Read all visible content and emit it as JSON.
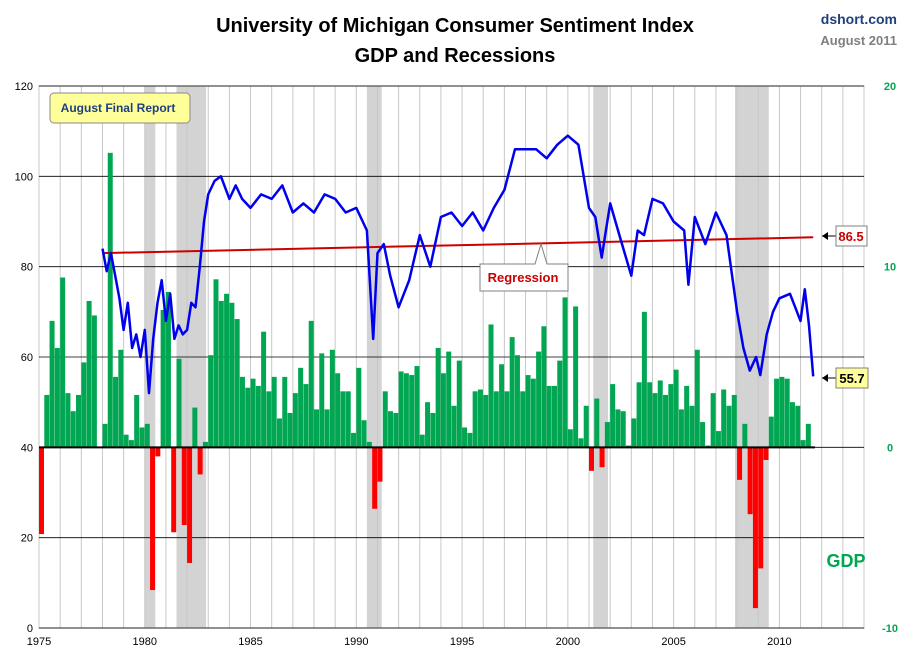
{
  "chart_data": {
    "type": "line",
    "title": "University of Michigan Consumer Sentiment Index",
    "subtitle": "GDP and Recessions",
    "source": "dshort.com",
    "date": "August 2011",
    "badge": "August Final Report",
    "regression_label": "Regression",
    "regression": {
      "start": [
        1978.0,
        83.0
      ],
      "end": [
        2011.6,
        86.5
      ],
      "label": "86.5"
    },
    "latest_label": "55.7",
    "gdp_label": "GDP",
    "colors": {
      "sentiment": "#0000ee",
      "regression": "#cc0000",
      "gdp_positive": "#00a651",
      "gdp_negative": "#ff0000",
      "recession": "#d3d3d3",
      "badge_fill": "#ffff99"
    },
    "left_axis": {
      "min": 0,
      "max": 120,
      "ticks": [
        "0",
        "20",
        "40",
        "60",
        "80",
        "100",
        "120"
      ]
    },
    "right_axis": {
      "min": -10,
      "max": 20,
      "ticks": [
        "-10",
        "0",
        "10",
        "20"
      ]
    },
    "x_axis": {
      "min": 1975,
      "max": 2014,
      "ticks": [
        "1975",
        "1980",
        "1985",
        "1990",
        "1995",
        "2000",
        "2005",
        "2010"
      ]
    },
    "recessions": [
      [
        1980.0,
        1980.5
      ],
      [
        1981.5,
        1982.9
      ],
      [
        1990.5,
        1991.2
      ],
      [
        2001.2,
        2001.9
      ],
      [
        2007.9,
        2009.5
      ]
    ],
    "sentiment": {
      "x": [
        1978.0,
        1978.2,
        1978.4,
        1978.6,
        1978.8,
        1979.0,
        1979.2,
        1979.4,
        1979.6,
        1979.8,
        1980.0,
        1980.2,
        1980.4,
        1980.6,
        1980.8,
        1981.0,
        1981.2,
        1981.4,
        1981.6,
        1981.8,
        1982.0,
        1982.2,
        1982.4,
        1982.6,
        1982.8,
        1983.0,
        1983.3,
        1983.6,
        1984.0,
        1984.3,
        1984.6,
        1985.0,
        1985.5,
        1986.0,
        1986.5,
        1987.0,
        1987.5,
        1988.0,
        1988.5,
        1989.0,
        1989.5,
        1990.0,
        1990.5,
        1990.8,
        1991.0,
        1991.3,
        1991.6,
        1992.0,
        1992.5,
        1993.0,
        1993.5,
        1994.0,
        1994.5,
        1995.0,
        1995.5,
        1996.0,
        1996.5,
        1997.0,
        1997.5,
        1998.0,
        1998.5,
        1999.0,
        1999.5,
        2000.0,
        2000.5,
        2001.0,
        2001.3,
        2001.6,
        2001.8,
        2002.0,
        2002.5,
        2003.0,
        2003.3,
        2003.6,
        2004.0,
        2004.5,
        2005.0,
        2005.5,
        2005.7,
        2006.0,
        2006.5,
        2007.0,
        2007.5,
        2008.0,
        2008.3,
        2008.6,
        2008.9,
        2009.1,
        2009.4,
        2009.7,
        2010.0,
        2010.5,
        2011.0,
        2011.2,
        2011.4,
        2011.6
      ],
      "values": [
        84,
        79,
        83,
        78,
        73,
        66,
        72,
        62,
        65,
        60,
        66,
        52,
        64,
        72,
        77,
        68,
        74,
        64,
        67,
        65,
        66,
        72,
        71,
        80,
        90,
        96,
        99,
        100,
        95,
        98,
        95,
        93,
        96,
        95,
        98,
        92,
        94,
        92,
        96,
        95,
        92,
        93,
        88,
        64,
        83,
        85,
        78,
        71,
        77,
        87,
        80,
        91,
        92,
        89,
        92,
        88,
        93,
        97,
        106,
        106,
        106,
        104,
        107,
        109,
        107,
        93,
        91,
        82,
        88,
        94,
        86,
        78,
        88,
        87,
        95,
        94,
        90,
        88,
        76,
        91,
        85,
        92,
        87,
        70,
        62,
        57,
        60,
        56,
        65,
        70,
        73,
        74,
        68,
        75,
        67,
        55.7
      ]
    },
    "gdp": {
      "x": [
        1975.0,
        1975.25,
        1975.5,
        1975.75,
        1976.0,
        1976.25,
        1976.5,
        1976.75,
        1977.0,
        1977.25,
        1977.5,
        1977.75,
        1978.0,
        1978.25,
        1978.5,
        1978.75,
        1979.0,
        1979.25,
        1979.5,
        1979.75,
        1980.0,
        1980.25,
        1980.5,
        1980.75,
        1981.0,
        1981.25,
        1981.5,
        1981.75,
        1982.0,
        1982.25,
        1982.5,
        1982.75,
        1983.0,
        1983.25,
        1983.5,
        1983.75,
        1984.0,
        1984.25,
        1984.5,
        1984.75,
        1985.0,
        1985.25,
        1985.5,
        1985.75,
        1986.0,
        1986.25,
        1986.5,
        1986.75,
        1987.0,
        1987.25,
        1987.5,
        1987.75,
        1988.0,
        1988.25,
        1988.5,
        1988.75,
        1989.0,
        1989.25,
        1989.5,
        1989.75,
        1990.0,
        1990.25,
        1990.5,
        1990.75,
        1991.0,
        1991.25,
        1991.5,
        1991.75,
        1992.0,
        1992.25,
        1992.5,
        1992.75,
        1993.0,
        1993.25,
        1993.5,
        1993.75,
        1994.0,
        1994.25,
        1994.5,
        1994.75,
        1995.0,
        1995.25,
        1995.5,
        1995.75,
        1996.0,
        1996.25,
        1996.5,
        1996.75,
        1997.0,
        1997.25,
        1997.5,
        1997.75,
        1998.0,
        1998.25,
        1998.5,
        1998.75,
        1999.0,
        1999.25,
        1999.5,
        1999.75,
        2000.0,
        2000.25,
        2000.5,
        2000.75,
        2001.0,
        2001.25,
        2001.5,
        2001.75,
        2002.0,
        2002.25,
        2002.5,
        2002.75,
        2003.0,
        2003.25,
        2003.5,
        2003.75,
        2004.0,
        2004.25,
        2004.5,
        2004.75,
        2005.0,
        2005.25,
        2005.5,
        2005.75,
        2006.0,
        2006.25,
        2006.5,
        2006.75,
        2007.0,
        2007.25,
        2007.5,
        2007.75,
        2008.0,
        2008.25,
        2008.5,
        2008.75,
        2009.0,
        2009.25,
        2009.5,
        2009.75,
        2010.0,
        2010.25,
        2010.5,
        2010.75,
        2011.0,
        2011.25
      ],
      "values": [
        -4.8,
        2.9,
        7.0,
        5.5,
        9.4,
        3.0,
        2.0,
        2.9,
        4.7,
        8.1,
        7.3,
        0.0,
        1.3,
        16.3,
        3.9,
        5.4,
        0.7,
        0.4,
        2.9,
        1.1,
        1.3,
        -7.9,
        -0.5,
        7.6,
        8.6,
        -4.7,
        4.9,
        -4.3,
        -6.4,
        2.2,
        -1.5,
        0.3,
        5.1,
        9.3,
        8.1,
        8.5,
        8.0,
        7.1,
        3.9,
        3.3,
        3.8,
        3.4,
        6.4,
        3.1,
        3.9,
        1.6,
        3.9,
        1.9,
        3.0,
        4.4,
        3.5,
        7.0,
        2.1,
        5.2,
        2.1,
        5.4,
        4.1,
        3.1,
        3.1,
        0.8,
        4.4,
        1.5,
        0.3,
        -3.4,
        -1.9,
        3.1,
        2.0,
        1.9,
        4.2,
        4.1,
        4.0,
        4.5,
        0.7,
        2.5,
        1.9,
        5.5,
        4.1,
        5.3,
        2.3,
        4.8,
        1.1,
        0.8,
        3.1,
        3.2,
        2.9,
        6.8,
        3.1,
        4.6,
        3.1,
        6.1,
        5.1,
        3.1,
        4.0,
        3.8,
        5.3,
        6.7,
        3.4,
        3.4,
        4.8,
        8.3,
        1.0,
        7.8,
        0.5,
        2.3,
        -1.3,
        2.7,
        -1.1,
        1.4,
        3.5,
        2.1,
        2.0,
        0.1,
        1.6,
        3.6,
        7.5,
        3.6,
        3.0,
        3.7,
        2.9,
        3.5,
        4.3,
        2.1,
        3.4,
        2.3,
        5.4,
        1.4,
        0.1,
        3.0,
        0.9,
        3.2,
        2.3,
        2.9,
        -1.8,
        1.3,
        -3.7,
        -8.9,
        -6.7,
        -0.7,
        1.7,
        3.8,
        3.9,
        3.8,
        2.5,
        2.3,
        0.4,
        1.3
      ]
    }
  }
}
